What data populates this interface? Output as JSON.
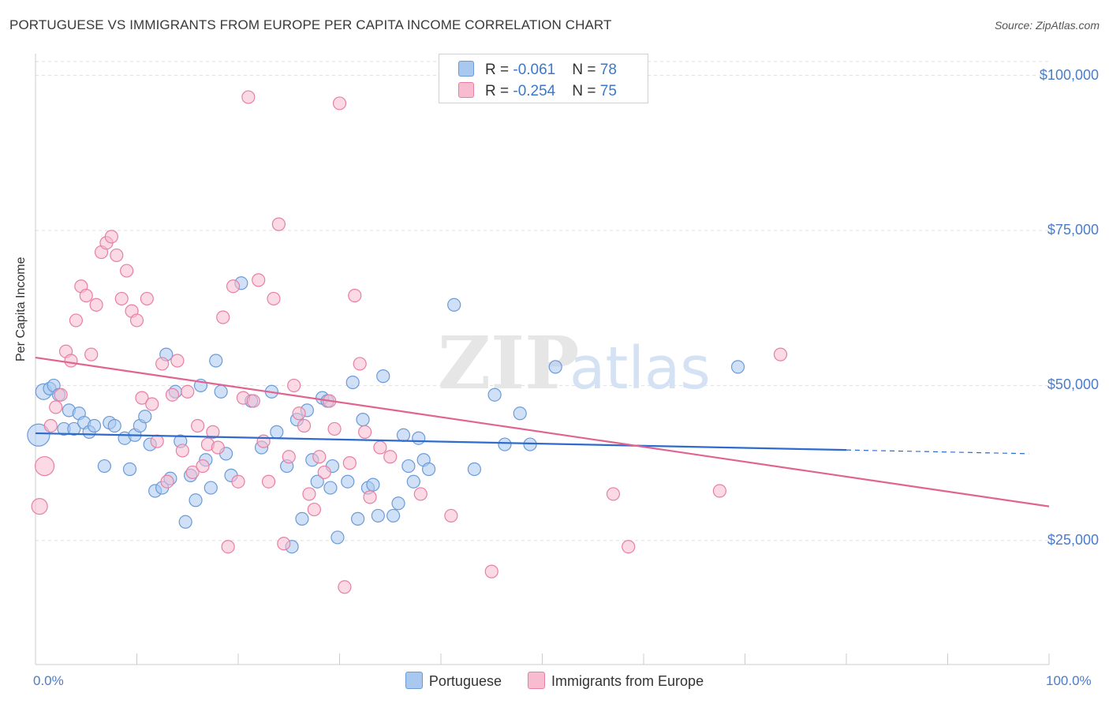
{
  "title": "PORTUGUESE VS IMMIGRANTS FROM EUROPE PER CAPITA INCOME CORRELATION CHART",
  "source": "Source: ZipAtlas.com",
  "watermark": {
    "zip": "ZIP",
    "atlas": "atlas"
  },
  "legend": {
    "rows": [
      {
        "r_label": "R = ",
        "r_value": "-0.061",
        "n_label": "N = ",
        "n_value": "78",
        "color": "#a9c8f0",
        "border": "#6a9bd8"
      },
      {
        "r_label": "R = ",
        "r_value": "-0.254",
        "n_label": "N = ",
        "n_value": "75",
        "color": "#f7bcd0",
        "border": "#e87fa3"
      }
    ]
  },
  "colors": {
    "blue_fill": "#a9c8f0",
    "blue_stroke": "#6a9bd8",
    "blue_line": "#2e6bcc",
    "pink_fill": "#f7bcd0",
    "pink_stroke": "#e87fa3",
    "pink_line": "#e0648f",
    "tick_text": "#4a7cc9",
    "grid": "#dddddd"
  },
  "chart_data": {
    "type": "scatter",
    "title": "PORTUGUESE VS IMMIGRANTS FROM EUROPE PER CAPITA INCOME CORRELATION CHART",
    "xlabel": "",
    "ylabel": "Per Capita Income",
    "xlim": [
      0,
      100
    ],
    "ylim": [
      5000,
      103000
    ],
    "x_tick_labels": [
      "0.0%",
      "100.0%"
    ],
    "y_ticks": [
      {
        "value": 25000,
        "label": "$25,000"
      },
      {
        "value": 50000,
        "label": "$50,000"
      },
      {
        "value": 75000,
        "label": "$75,000"
      },
      {
        "value": 100000,
        "label": "$100,000"
      }
    ],
    "grid": true,
    "legend_position": "top-center",
    "series": [
      {
        "name": "Portuguese",
        "color": "#a9c8f0",
        "trend": {
          "x0": 0,
          "y0": 42300,
          "x1": 80,
          "y1": 39600,
          "dash_to_x": 98,
          "dash_to_y": 39000
        },
        "points": [
          [
            0.3,
            42000,
            14
          ],
          [
            0.8,
            49000,
            10
          ],
          [
            1.4,
            49500,
            8
          ],
          [
            1.8,
            50000,
            8
          ],
          [
            2.3,
            48500,
            8
          ],
          [
            2.8,
            43000,
            8
          ],
          [
            3.3,
            46000,
            8
          ],
          [
            3.8,
            43000,
            8
          ],
          [
            4.3,
            45500,
            8
          ],
          [
            4.8,
            44000,
            8
          ],
          [
            5.3,
            42500,
            8
          ],
          [
            5.8,
            43500,
            8
          ],
          [
            6.8,
            37000,
            8
          ],
          [
            7.3,
            44000,
            8
          ],
          [
            7.8,
            43500,
            8
          ],
          [
            8.8,
            41500,
            8
          ],
          [
            9.3,
            36500,
            8
          ],
          [
            9.8,
            42000,
            8
          ],
          [
            10.3,
            43500,
            8
          ],
          [
            10.8,
            45000,
            8
          ],
          [
            11.3,
            40500,
            8
          ],
          [
            11.8,
            33000,
            8
          ],
          [
            12.5,
            33500,
            8
          ],
          [
            12.9,
            55000,
            8
          ],
          [
            13.3,
            35000,
            8
          ],
          [
            13.8,
            49000,
            8
          ],
          [
            14.3,
            41000,
            8
          ],
          [
            14.8,
            28000,
            8
          ],
          [
            15.3,
            35500,
            8
          ],
          [
            15.8,
            31500,
            8
          ],
          [
            16.3,
            50000,
            8
          ],
          [
            16.8,
            38000,
            8
          ],
          [
            17.3,
            33500,
            8
          ],
          [
            17.8,
            54000,
            8
          ],
          [
            18.3,
            49000,
            8
          ],
          [
            18.8,
            39000,
            8
          ],
          [
            19.3,
            35500,
            8
          ],
          [
            20.3,
            66500,
            8
          ],
          [
            21.3,
            47500,
            8
          ],
          [
            22.3,
            40000,
            8
          ],
          [
            23.3,
            49000,
            8
          ],
          [
            23.8,
            42500,
            8
          ],
          [
            24.8,
            37000,
            8
          ],
          [
            25.3,
            24000,
            8
          ],
          [
            25.8,
            44500,
            8
          ],
          [
            26.3,
            28500,
            8
          ],
          [
            26.8,
            46000,
            8
          ],
          [
            27.3,
            38000,
            8
          ],
          [
            27.8,
            34500,
            8
          ],
          [
            28.3,
            48000,
            8
          ],
          [
            28.8,
            47500,
            8
          ],
          [
            29.3,
            37000,
            8
          ],
          [
            29.8,
            25500,
            8
          ],
          [
            30.8,
            34500,
            8
          ],
          [
            31.3,
            50500,
            8
          ],
          [
            31.8,
            28500,
            8
          ],
          [
            32.3,
            44500,
            8
          ],
          [
            32.8,
            33500,
            8
          ],
          [
            33.3,
            34000,
            8
          ],
          [
            33.8,
            29000,
            8
          ],
          [
            34.3,
            51500,
            8
          ],
          [
            35.3,
            29000,
            8
          ],
          [
            35.8,
            31000,
            8
          ],
          [
            36.3,
            42000,
            8
          ],
          [
            36.8,
            37000,
            8
          ],
          [
            37.3,
            34500,
            8
          ],
          [
            37.8,
            41500,
            8
          ],
          [
            38.3,
            38000,
            8
          ],
          [
            38.8,
            36500,
            8
          ],
          [
            41.3,
            63000,
            8
          ],
          [
            43.3,
            36500,
            8
          ],
          [
            45.3,
            48500,
            8
          ],
          [
            46.3,
            40500,
            8
          ],
          [
            47.8,
            45500,
            8
          ],
          [
            48.8,
            40500,
            8
          ],
          [
            51.3,
            53000,
            8
          ],
          [
            69.3,
            53000,
            8
          ],
          [
            29.1,
            33500,
            8
          ]
        ]
      },
      {
        "name": "Immigrants from Europe",
        "color": "#f7bcd0",
        "trend": {
          "x0": 0,
          "y0": 54500,
          "x1": 100,
          "y1": 30500
        },
        "points": [
          [
            0.4,
            30500,
            10
          ],
          [
            0.9,
            37000,
            12
          ],
          [
            1.5,
            43500,
            8
          ],
          [
            2.0,
            46500,
            8
          ],
          [
            2.5,
            48500,
            8
          ],
          [
            3.0,
            55500,
            8
          ],
          [
            3.5,
            54000,
            8
          ],
          [
            4.0,
            60500,
            8
          ],
          [
            4.5,
            66000,
            8
          ],
          [
            5.0,
            64500,
            8
          ],
          [
            5.5,
            55000,
            8
          ],
          [
            6.0,
            63000,
            8
          ],
          [
            6.5,
            71500,
            8
          ],
          [
            7.0,
            73000,
            8
          ],
          [
            7.5,
            74000,
            8
          ],
          [
            8.0,
            71000,
            8
          ],
          [
            8.5,
            64000,
            8
          ],
          [
            9.0,
            68500,
            8
          ],
          [
            9.5,
            62000,
            8
          ],
          [
            10.0,
            60500,
            8
          ],
          [
            10.5,
            48000,
            8
          ],
          [
            11.0,
            64000,
            8
          ],
          [
            11.5,
            47000,
            8
          ],
          [
            12.0,
            41000,
            8
          ],
          [
            12.5,
            53500,
            8
          ],
          [
            13.0,
            34500,
            8
          ],
          [
            13.5,
            48500,
            8
          ],
          [
            14.0,
            54000,
            8
          ],
          [
            14.5,
            39500,
            8
          ],
          [
            15.0,
            49000,
            8
          ],
          [
            15.5,
            36000,
            8
          ],
          [
            16.0,
            43500,
            8
          ],
          [
            16.5,
            37000,
            8
          ],
          [
            17.0,
            40500,
            8
          ],
          [
            17.5,
            42500,
            8
          ],
          [
            18.0,
            40000,
            8
          ],
          [
            18.5,
            61000,
            8
          ],
          [
            19.0,
            24000,
            8
          ],
          [
            19.5,
            66000,
            8
          ],
          [
            20.0,
            34500,
            8
          ],
          [
            20.5,
            48000,
            8
          ],
          [
            21.0,
            96500,
            8
          ],
          [
            21.5,
            47500,
            8
          ],
          [
            22.0,
            67000,
            8
          ],
          [
            22.5,
            41000,
            8
          ],
          [
            23.0,
            34500,
            8
          ],
          [
            23.5,
            64000,
            8
          ],
          [
            24.0,
            76000,
            8
          ],
          [
            24.5,
            24500,
            8
          ],
          [
            25.0,
            38500,
            8
          ],
          [
            25.5,
            50000,
            8
          ],
          [
            26.0,
            45500,
            8
          ],
          [
            26.5,
            43500,
            8
          ],
          [
            27.0,
            32500,
            8
          ],
          [
            27.5,
            30000,
            8
          ],
          [
            28.0,
            38500,
            8
          ],
          [
            28.5,
            36000,
            8
          ],
          [
            29.0,
            47500,
            8
          ],
          [
            29.5,
            43000,
            8
          ],
          [
            30.0,
            95500,
            8
          ],
          [
            30.5,
            17500,
            8
          ],
          [
            31.0,
            37500,
            8
          ],
          [
            31.5,
            64500,
            8
          ],
          [
            32.0,
            53500,
            8
          ],
          [
            32.5,
            42500,
            8
          ],
          [
            33.0,
            32000,
            8
          ],
          [
            34.0,
            40000,
            8
          ],
          [
            35.0,
            38500,
            8
          ],
          [
            38.0,
            32500,
            8
          ],
          [
            41.0,
            29000,
            8
          ],
          [
            45.0,
            20000,
            8
          ],
          [
            57.0,
            32500,
            8
          ],
          [
            58.5,
            24000,
            8
          ],
          [
            67.5,
            33000,
            8
          ],
          [
            73.5,
            55000,
            8
          ]
        ]
      }
    ]
  },
  "bottom_legend": [
    {
      "label": "Portuguese",
      "color": "#a9c8f0",
      "border": "#6a9bd8"
    },
    {
      "label": "Immigrants from Europe",
      "color": "#f7bcd0",
      "border": "#e87fa3"
    }
  ]
}
